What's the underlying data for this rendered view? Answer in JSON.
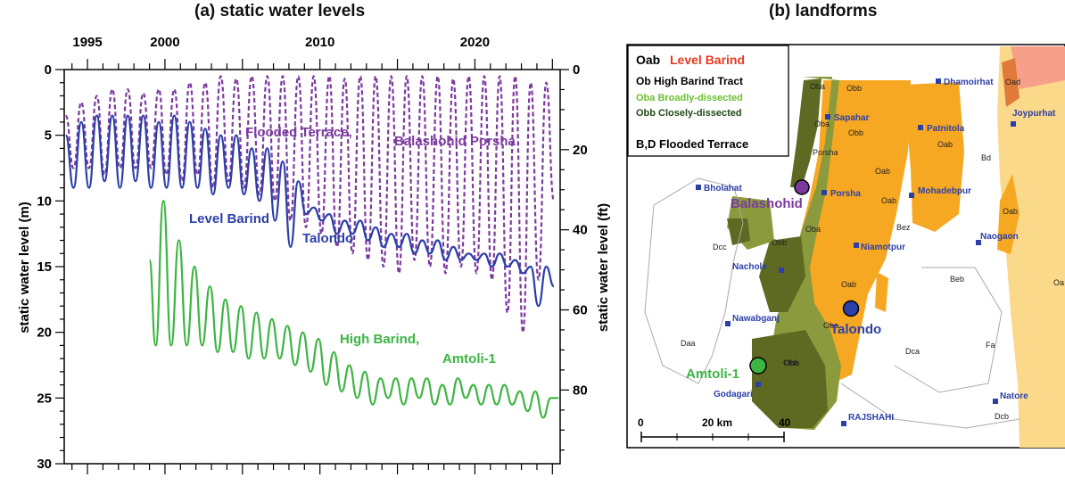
{
  "panel_a": {
    "title": "(a) static water levels",
    "ylabel_left": "static water level (m)",
    "ylabel_right": "static water level (ft)",
    "top_ticks": [
      "1995",
      "2000",
      "2010",
      "2020"
    ],
    "left_ticks": [
      "0",
      "5",
      "10",
      "15",
      "20",
      "25",
      "30"
    ],
    "right_ticks": [
      "0",
      "20",
      "40",
      "60",
      "80"
    ],
    "annotations": {
      "flooded": "Flooded Terrace,",
      "balashohid": "Balashohid Porsha",
      "level": "Level Barind",
      "talondo": "Talondo",
      "high": "High Barind,",
      "amtoli": "Amtoli-1"
    }
  },
  "panel_b": {
    "title": "(b) landforms",
    "legend": {
      "oab_code": "Oab",
      "oab_name": "Level Barind",
      "ob": "Ob High Barind Tract",
      "oba": "Oba Broadly-dissected",
      "obb": "Obb Closely-dissected",
      "bd": "B,D Flooded Terrace"
    },
    "towns": [
      "Dhamoirhat",
      "Sapahar",
      "Patnitola",
      "Joypurhat",
      "Porsha",
      "Bholahat",
      "Mohadebpur",
      "Naogaon",
      "Niamotpur",
      "Nachole",
      "Nawabganj",
      "Godagari",
      "RAJSHAHI",
      "Natore"
    ],
    "wells": {
      "balashohid": "Balashohid",
      "talondo": "Talondo",
      "amtoli": "Amtoli-1"
    },
    "map_labels": [
      "Oba",
      "Obb",
      "Oba",
      "Obb",
      "Porsha",
      "Oab",
      "Bd",
      "Oab",
      "Oab",
      "Oab",
      "Oad",
      "Oba",
      "Obb",
      "Oba",
      "Obb",
      "Oab",
      "Obb",
      "Dcc",
      "Bez",
      "Beb",
      "Daa",
      "Dca",
      "Fa",
      "Dcb",
      "Oa"
    ],
    "scale": {
      "zero": "0",
      "mid": "20 km",
      "end": "40"
    },
    "colors": {
      "level_barind": "#F7A823",
      "oba": "#8A9A3C",
      "obb": "#5E6A22",
      "flood": "#FFFFFF",
      "right_region": "#FBD98A"
    }
  },
  "chart_data": {
    "type": "line",
    "title": "(a) static water levels",
    "xlabel": "",
    "ylabel": "static water level (m)",
    "y2label": "static water level (ft)",
    "xlim": [
      1993.5,
      2025.5
    ],
    "ylim": [
      30,
      0
    ],
    "y2lim": [
      98.4,
      0
    ],
    "x_ticks": [
      1995,
      2000,
      2010,
      2020
    ],
    "y_ticks": [
      0,
      5,
      10,
      15,
      20,
      25,
      30
    ],
    "y2_ticks": [
      0,
      20,
      40,
      60,
      80
    ],
    "y_reversed": true,
    "series": [
      {
        "name": "Flooded Terrace, Balashohid Porsha",
        "color": "#7B3A9E",
        "style": "dashed",
        "x": [
          1993.6,
          1994.1,
          1994.6,
          1995.1,
          1995.6,
          1996.1,
          1996.6,
          1997.1,
          1997.6,
          1998.1,
          1998.6,
          1999.1,
          1999.6,
          2000.1,
          2000.6,
          2001.1,
          2001.6,
          2002.1,
          2002.6,
          2003.1,
          2003.6,
          2004.1,
          2004.6,
          2005.1,
          2005.6,
          2006.1,
          2006.6,
          2007.1,
          2007.6,
          2008.1,
          2008.6,
          2009.1,
          2009.6,
          2010.1,
          2010.6,
          2011.1,
          2011.6,
          2012.1,
          2012.6,
          2013.1,
          2013.6,
          2014.1,
          2014.6,
          2015.1,
          2015.6,
          2016.1,
          2016.6,
          2017.1,
          2017.6,
          2018.1,
          2018.6,
          2019.1,
          2019.6,
          2020.1,
          2020.6,
          2021.1,
          2021.6,
          2022.1,
          2022.6,
          2023.1,
          2023.6,
          2024.1,
          2024.6,
          2025.1
        ],
        "y": [
          3.5,
          7.5,
          2.5,
          7.5,
          2.0,
          8.0,
          1.5,
          7.5,
          1.5,
          7.5,
          1.8,
          7.5,
          1.5,
          8.0,
          1.5,
          8.5,
          1.0,
          8.0,
          1.0,
          9.0,
          0.5,
          8.5,
          0.7,
          9.0,
          0.5,
          9.5,
          0.5,
          10.0,
          0.5,
          11.5,
          0.5,
          12.0,
          0.5,
          12.5,
          0.5,
          13.5,
          0.7,
          14.0,
          0.5,
          14.5,
          0.5,
          15.0,
          0.5,
          15.5,
          0.5,
          14.5,
          0.5,
          15.0,
          0.5,
          15.5,
          0.7,
          15.0,
          0.5,
          15.5,
          0.5,
          16.0,
          0.5,
          18.5,
          0.5,
          20.0,
          1.0,
          16.0,
          1.0,
          10.0
        ]
      },
      {
        "name": "Level Barind, Talondo",
        "color": "#2B3FA8",
        "style": "solid",
        "x": [
          1993.6,
          1994.1,
          1994.6,
          1995.1,
          1995.6,
          1996.1,
          1996.6,
          1997.1,
          1997.6,
          1998.1,
          1998.6,
          1999.1,
          1999.6,
          2000.1,
          2000.6,
          2001.1,
          2001.6,
          2002.1,
          2002.6,
          2003.1,
          2003.6,
          2004.1,
          2004.6,
          2005.1,
          2005.6,
          2006.1,
          2006.6,
          2007.1,
          2007.6,
          2008.1,
          2008.6,
          2009.1,
          2009.6,
          2010.1,
          2010.6,
          2011.1,
          2011.6,
          2012.1,
          2012.6,
          2013.1,
          2013.6,
          2014.1,
          2014.6,
          2015.1,
          2015.6,
          2016.1,
          2016.6,
          2017.1,
          2017.6,
          2018.1,
          2018.6,
          2019.1,
          2019.6,
          2020.1,
          2020.6,
          2021.1,
          2021.6,
          2022.1,
          2022.6,
          2023.1,
          2023.6,
          2024.1,
          2024.6,
          2025.1
        ],
        "y": [
          5.0,
          9.0,
          4.0,
          9.0,
          3.5,
          8.5,
          3.5,
          9.0,
          3.5,
          8.5,
          3.5,
          9.0,
          4.0,
          9.0,
          3.5,
          9.0,
          4.0,
          9.0,
          4.5,
          9.5,
          5.0,
          9.0,
          5.0,
          9.5,
          6.0,
          10.0,
          6.0,
          11.5,
          7.0,
          13.5,
          8.5,
          11.0,
          10.5,
          11.5,
          11.0,
          12.5,
          11.5,
          12.5,
          11.5,
          13.0,
          12.0,
          13.5,
          12.5,
          13.5,
          12.5,
          14.0,
          13.0,
          14.0,
          13.0,
          14.5,
          13.5,
          14.5,
          14.0,
          14.5,
          14.0,
          15.0,
          14.0,
          15.0,
          14.5,
          15.5,
          15.0,
          18.0,
          15.0,
          16.5
        ]
      },
      {
        "name": "High Barind, Amtoli-1",
        "color": "#3DB543",
        "style": "solid",
        "x": [
          1999.0,
          1999.4,
          1999.9,
          2000.4,
          2000.9,
          2001.4,
          2001.9,
          2002.4,
          2002.9,
          2003.4,
          2003.9,
          2004.4,
          2004.9,
          2005.4,
          2005.9,
          2006.4,
          2006.9,
          2007.4,
          2007.9,
          2008.4,
          2008.9,
          2009.4,
          2009.9,
          2010.4,
          2010.9,
          2011.4,
          2011.9,
          2012.4,
          2012.9,
          2013.4,
          2013.9,
          2014.4,
          2014.9,
          2015.4,
          2015.9,
          2016.4,
          2016.9,
          2017.4,
          2017.9,
          2018.4,
          2018.9,
          2019.4,
          2019.9,
          2020.4,
          2020.9,
          2021.4,
          2021.9,
          2022.4,
          2022.9,
          2023.4,
          2023.9,
          2024.4,
          2024.9,
          2025.4
        ],
        "y": [
          14.5,
          21.0,
          10.0,
          21.0,
          13.0,
          21.0,
          15.0,
          21.0,
          16.5,
          21.5,
          17.5,
          21.5,
          18.0,
          22.0,
          18.5,
          22.0,
          19.0,
          22.0,
          19.5,
          22.5,
          20.0,
          23.0,
          20.5,
          24.0,
          21.5,
          24.5,
          22.5,
          25.0,
          23.0,
          25.5,
          23.5,
          25.0,
          23.5,
          25.5,
          23.5,
          25.0,
          23.5,
          25.5,
          24.0,
          25.5,
          23.5,
          25.0,
          24.0,
          25.5,
          24.0,
          25.5,
          24.0,
          25.5,
          24.5,
          26.0,
          24.5,
          26.5,
          25.0,
          25.0
        ]
      }
    ]
  }
}
